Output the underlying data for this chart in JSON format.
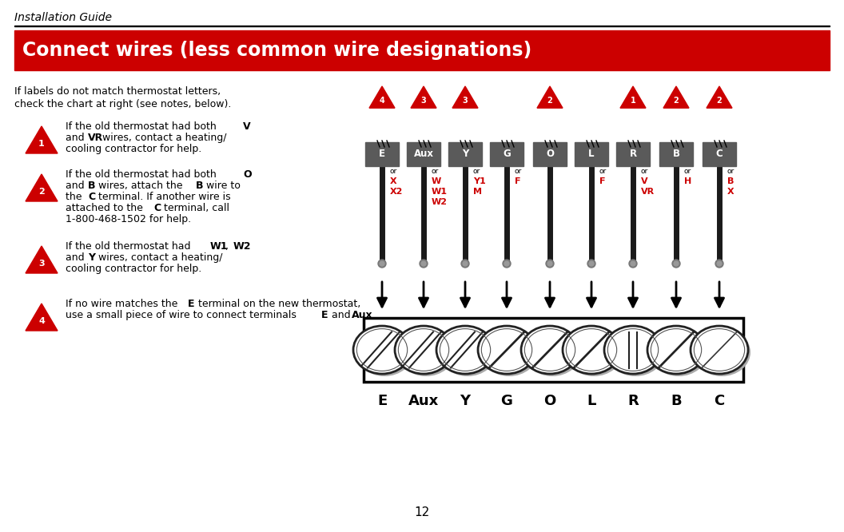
{
  "title": "Connect wires (less common wire designations)",
  "header": "Installation Guide",
  "page_number": "12",
  "bg_color": "#ffffff",
  "title_bg": "#cc0000",
  "title_color": "#ffffff",
  "terminal_labels": [
    "E",
    "Aux",
    "Y",
    "G",
    "O",
    "L",
    "R",
    "B",
    "C"
  ],
  "terminal_notes": [
    "4",
    "3",
    "3",
    "",
    "2",
    "",
    "1",
    "2",
    "2"
  ],
  "terminal_alt": [
    [
      "or",
      "X",
      "X2"
    ],
    [
      "or",
      "W",
      "W1",
      "W2"
    ],
    [
      "or",
      "Y1",
      "M"
    ],
    [
      "or",
      "F"
    ],
    [],
    [
      "or",
      "F"
    ],
    [
      "or",
      "V",
      "VR"
    ],
    [
      "or",
      "H"
    ],
    [
      "or",
      "B",
      "X"
    ]
  ]
}
